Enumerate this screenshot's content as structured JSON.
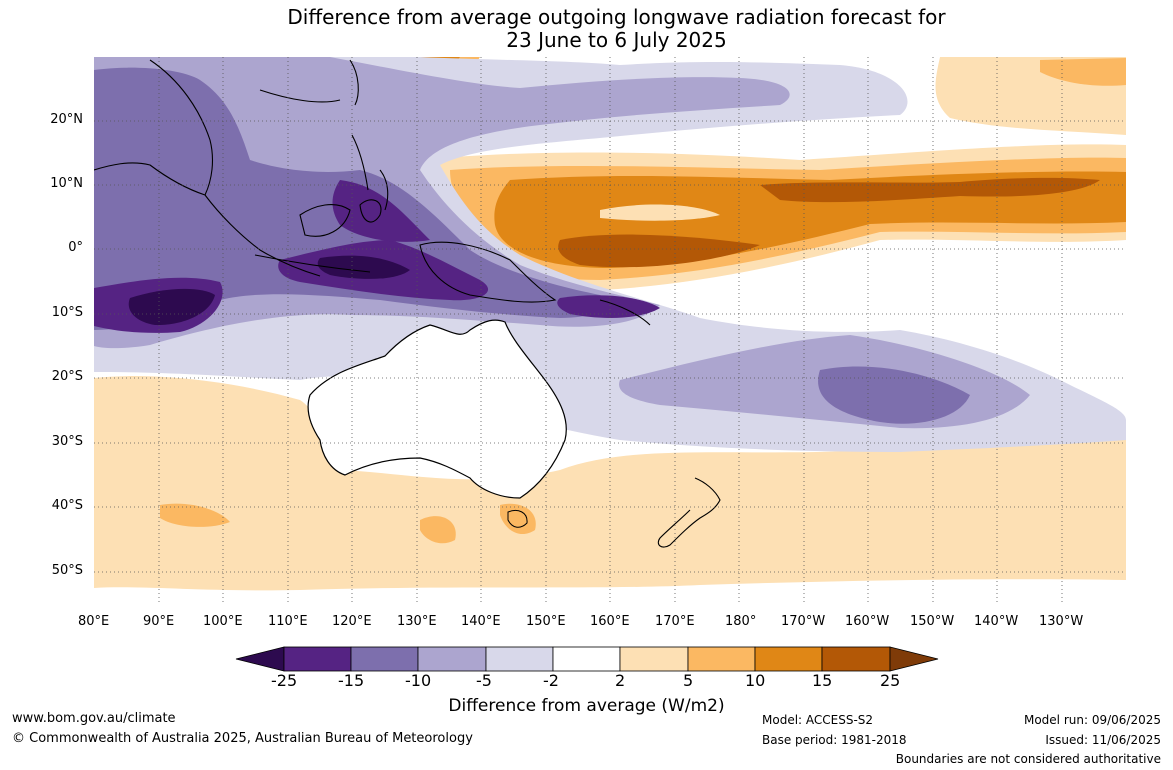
{
  "title": {
    "line1": "Difference from average outgoing longwave radiation forecast for",
    "line2": "23 June to 6 July 2025"
  },
  "map": {
    "lat_labels": [
      "20°N",
      "10°N",
      "0°",
      "10°S",
      "20°S",
      "30°S",
      "40°S",
      "50°S"
    ],
    "lon_labels": [
      "80°E",
      "90°E",
      "100°E",
      "110°E",
      "120°E",
      "130°E",
      "140°E",
      "150°E",
      "160°E",
      "170°E",
      "180°",
      "170°W",
      "160°W",
      "150°W",
      "140°W",
      "130°W"
    ],
    "lon_range_deg_east": [
      80,
      240
    ],
    "lat_range": [
      -55,
      30
    ]
  },
  "colorbar": {
    "tick_labels": [
      "-25",
      "-15",
      "-10",
      "-5",
      "-2",
      "2",
      "5",
      "10",
      "15",
      "25"
    ],
    "colors": [
      "#2d0a4f",
      "#552383",
      "#7d6fad",
      "#aca5cf",
      "#d8d8ea",
      "#ffffff",
      "#fde0b4",
      "#fbb862",
      "#e08716",
      "#b35806",
      "#7f3b08"
    ],
    "title": "Difference from average (W/m2)"
  },
  "footer": {
    "website": "www.bom.gov.au/climate",
    "copyright": "© Commonwealth of Australia 2025, Australian Bureau of Meteorology",
    "model": "Model: ACCESS-S2",
    "base_period": "Base period: 1981-2018",
    "model_run": "Model run: 09/06/2025",
    "issued": "Issued: 11/06/2025",
    "boundaries_note": "Boundaries are not considered authoritative"
  }
}
